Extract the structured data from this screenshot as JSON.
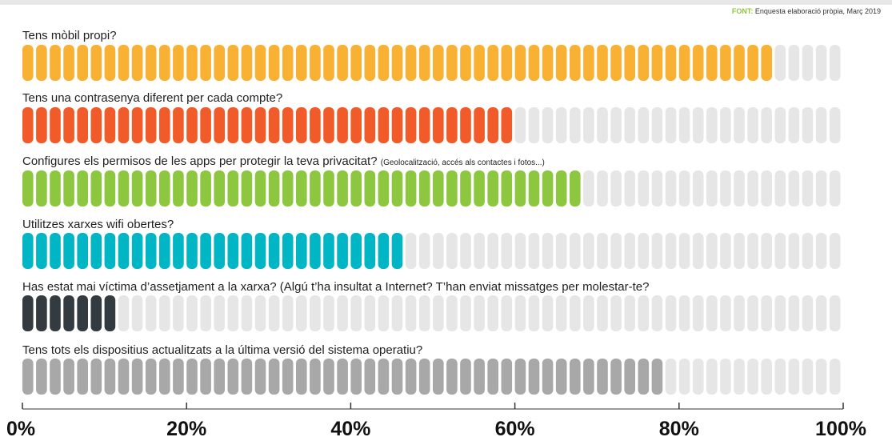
{
  "source": {
    "key": "FONT:",
    "text": "Enquesta elaboració pròpia, Març 2019"
  },
  "track_color": "#e6e6e6",
  "chart_data": {
    "type": "bar",
    "orientation": "horizontal",
    "xlim": [
      0,
      100
    ],
    "x_ticks": [
      "0%",
      "20%",
      "40%",
      "60%",
      "80%",
      "100%"
    ],
    "segments_per_bar": 60,
    "series": [
      {
        "label": "Tens mòbil propi?",
        "sublabel": "",
        "value": 92,
        "color": "#f8b133"
      },
      {
        "label": "Tens una contrasenya diferent per cada compte?",
        "sublabel": "",
        "value": 60,
        "color": "#f15a29"
      },
      {
        "label": "Configures els permisos de les apps per protegir la teva privacitat?",
        "sublabel": "(Geolocalització, accés als contactes i fotos...)",
        "value": 68,
        "color": "#8dc63f"
      },
      {
        "label": "Utilitzes xarxes wifi obertes?",
        "sublabel": "",
        "value": 47,
        "color": "#00b5c4"
      },
      {
        "label": "Has estat mai víctima d’assetjament a la xarxa? (Algú t’ha insultat a Internet? T’han enviat missatges per molestar-te?",
        "sublabel": "",
        "value": 12,
        "color": "#333a40"
      },
      {
        "label": "Tens tots els dispositius actualitzats a la última versió del sistema operatiu?",
        "sublabel": "",
        "value": 78,
        "color": "#a8a8a8"
      }
    ]
  }
}
